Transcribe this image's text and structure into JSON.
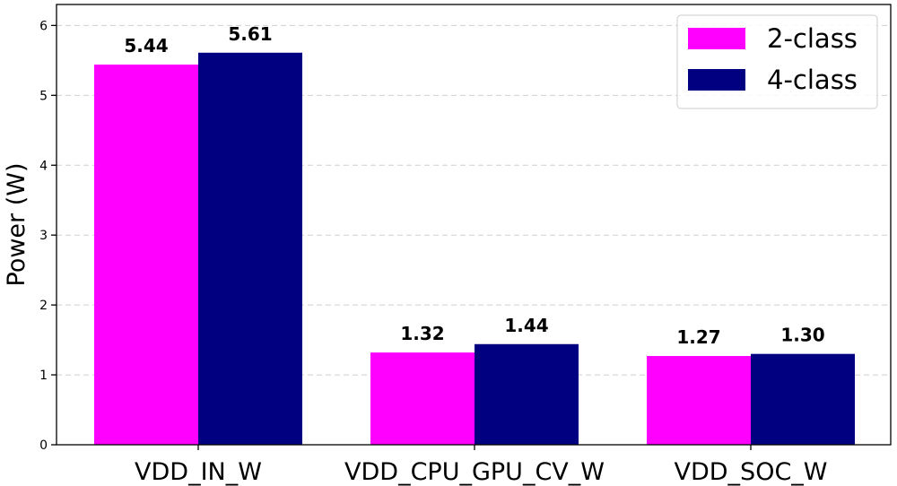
{
  "chart_data": {
    "type": "bar",
    "title": "",
    "xlabel": "",
    "ylabel": "Power (W)",
    "ylim": [
      0,
      6.3
    ],
    "yticks": [
      0,
      1,
      2,
      3,
      4,
      5,
      6
    ],
    "grid": "y-dashed",
    "legend_position": "top-right",
    "categories": [
      "VDD_IN_W",
      "VDD_CPU_GPU_CV_W",
      "VDD_SOC_W"
    ],
    "series": [
      {
        "name": "2-class",
        "color": "#ff00ff",
        "values": [
          5.44,
          1.32,
          1.27
        ],
        "labels": [
          "5.44",
          "1.32",
          "1.27"
        ]
      },
      {
        "name": "4-class",
        "color": "#000080",
        "values": [
          5.61,
          1.44,
          1.3
        ],
        "labels": [
          "5.61",
          "1.44",
          "1.30"
        ]
      }
    ]
  }
}
